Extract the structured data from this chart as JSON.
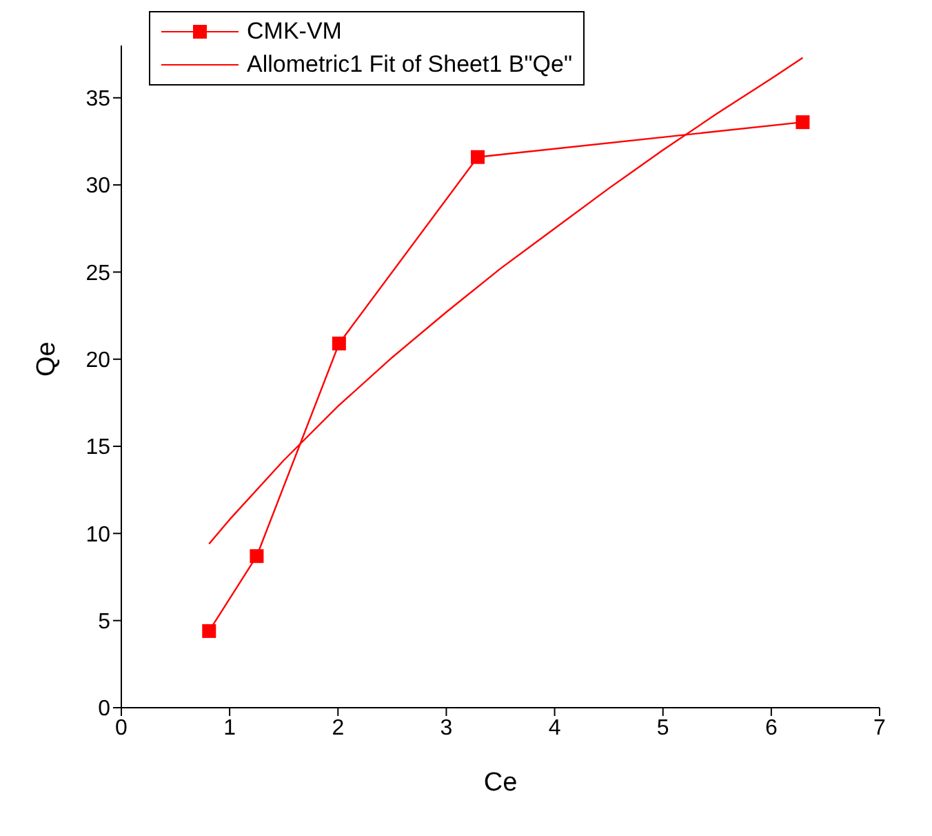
{
  "chart_data": {
    "type": "line",
    "xlabel": "Ce",
    "ylabel": "Qe",
    "xlim": [
      0,
      7
    ],
    "xticks": [
      0,
      1,
      2,
      3,
      4,
      5,
      6,
      7
    ],
    "ylim": [
      0,
      38
    ],
    "yticks": [
      0,
      5,
      10,
      15,
      20,
      25,
      30,
      35
    ],
    "legend": "top left",
    "series": [
      {
        "name": "CMK-VM",
        "color": "#ff0000",
        "marker": "square",
        "x": [
          0.81,
          1.25,
          2.01,
          3.29,
          6.29
        ],
        "values": [
          4.4,
          8.7,
          20.9,
          31.6,
          33.6
        ]
      },
      {
        "name": "Allometric1 Fit of Sheet1 B\"Qe\"",
        "color": "#ff0000",
        "marker": "none",
        "x": [
          0.81,
          1,
          1.5,
          2,
          2.5,
          3,
          3.5,
          4,
          4.5,
          5,
          5.5,
          6,
          6.29
        ],
        "values": [
          9.4,
          10.8,
          14.2,
          17.3,
          20.1,
          22.7,
          25.2,
          27.5,
          29.8,
          32.0,
          34.1,
          36.1,
          37.3
        ]
      }
    ]
  }
}
